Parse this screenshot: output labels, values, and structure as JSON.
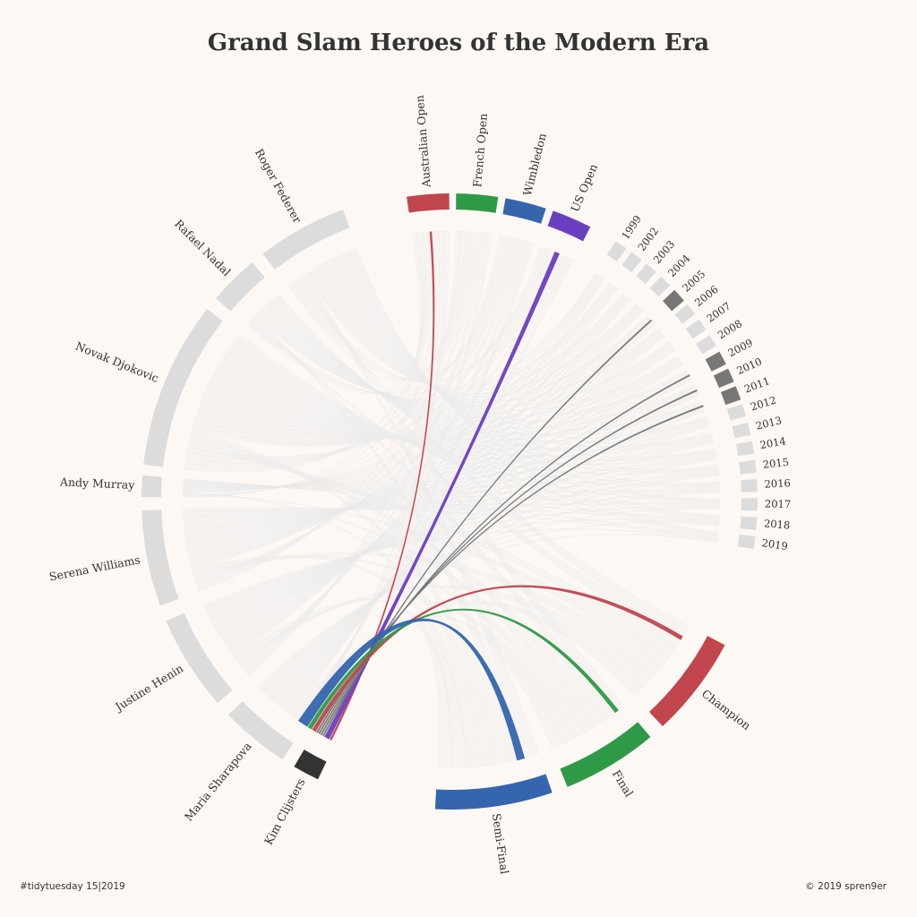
{
  "header": {
    "title": "Grand Slam Heroes of the Modern Era"
  },
  "footer": {
    "left": "#tidytuesday 15|2019",
    "right": "© 2019 spren9er"
  },
  "colors": {
    "background": "#fdf8f4",
    "neutral_arc": "#dcdcdc",
    "background_ribbon": "#eeeeee",
    "highlight_player": "#333333",
    "highlight_year": "#777777",
    "australian_open": "#c1464e",
    "french_open": "#2e9a47",
    "wimbledon": "#3465ad",
    "us_open": "#6a3fbf",
    "champion": "#c1464e",
    "final": "#2e9a47",
    "semi_final": "#3465ad"
  },
  "chart_data": {
    "type": "chord",
    "highlighted_player": "Kim Clijsters",
    "groups": {
      "tournaments": [
        "Australian Open",
        "French Open",
        "Wimbledon",
        "US Open"
      ],
      "years": [
        "1999",
        "2002",
        "2003",
        "2004",
        "2005",
        "2006",
        "2007",
        "2008",
        "2009",
        "2010",
        "2011",
        "2012",
        "2013",
        "2014",
        "2015",
        "2016",
        "2017",
        "2018",
        "2019"
      ],
      "outcomes": [
        "Champion",
        "Final",
        "Semi-Final"
      ],
      "players": [
        "Roger Federer",
        "Rafael Nadal",
        "Novak Djokovic",
        "Andy Murray",
        "Serena Williams",
        "Justine Henin",
        "Maria Sharapova",
        "Kim Clijsters"
      ]
    },
    "highlighted_links": {
      "tournaments": [
        "Australian Open",
        "US Open"
      ],
      "years": [
        "2005",
        "2009",
        "2010",
        "2011"
      ],
      "outcomes": [
        "Champion",
        "Final",
        "Semi-Final"
      ]
    }
  }
}
